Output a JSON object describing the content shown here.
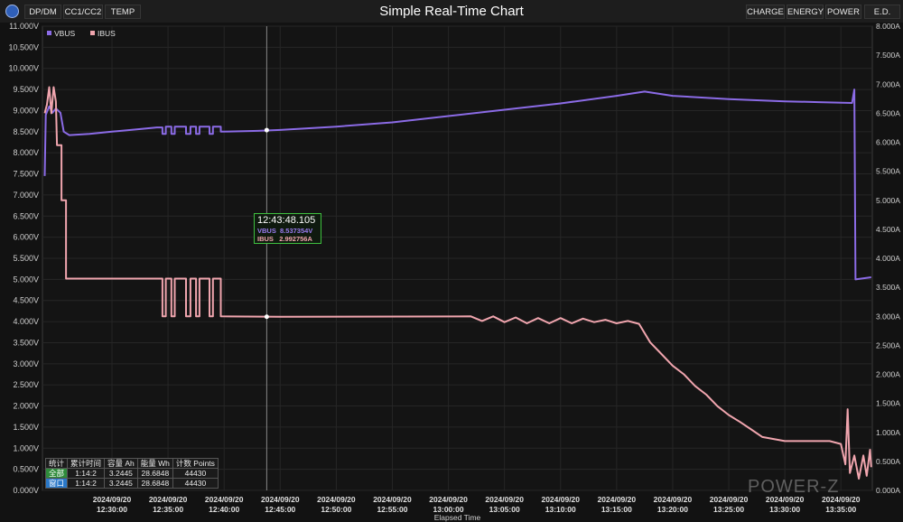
{
  "toolbar": {
    "tabs": [
      "DP/DM",
      "CC1/CC2",
      "TEMP"
    ],
    "title": "Simple Real-Time Chart",
    "right_buttons": [
      "CHARGE",
      "ENERGY",
      "POWER",
      "E.D."
    ]
  },
  "chart_data": {
    "type": "line",
    "title": "Simple Real-Time Chart",
    "xlabel": "Elapsed Time",
    "x_ticks": [
      [
        "2024/09/20",
        "12:30:00"
      ],
      [
        "2024/09/20",
        "12:35:00"
      ],
      [
        "2024/09/20",
        "12:40:00"
      ],
      [
        "2024/09/20",
        "12:45:00"
      ],
      [
        "2024/09/20",
        "12:50:00"
      ],
      [
        "2024/09/20",
        "12:55:00"
      ],
      [
        "2024/09/20",
        "13:00:00"
      ],
      [
        "2024/09/20",
        "13:05:00"
      ],
      [
        "2024/09/20",
        "13:10:00"
      ],
      [
        "2024/09/20",
        "13:15:00"
      ],
      [
        "2024/09/20",
        "13:20:00"
      ],
      [
        "2024/09/20",
        "13:25:00"
      ],
      [
        "2024/09/20",
        "13:30:00"
      ],
      [
        "2024/09/20",
        "13:35:00"
      ]
    ],
    "x_tick_minutes": [
      0,
      5,
      10,
      15,
      20,
      25,
      30,
      35,
      40,
      45,
      50,
      55,
      60,
      65
    ],
    "xlim_minutes": [
      -6.2,
      67.8
    ],
    "y_left": {
      "ticks": [
        "11.000V",
        "10.500V",
        "10.000V",
        "9.500V",
        "9.000V",
        "8.500V",
        "8.000V",
        "7.500V",
        "7.000V",
        "6.500V",
        "6.000V",
        "5.500V",
        "5.000V",
        "4.500V",
        "4.000V",
        "3.500V",
        "3.000V",
        "2.500V",
        "2.000V",
        "1.500V",
        "1.000V",
        "0.500V",
        "0.000V"
      ],
      "ylim": [
        0,
        11
      ]
    },
    "y_right": {
      "ticks": [
        "8.000A",
        "7.500A",
        "7.000A",
        "6.500A",
        "6.000A",
        "5.500A",
        "5.000A",
        "4.500A",
        "4.000A",
        "3.500A",
        "3.000A",
        "2.500A",
        "2.000A",
        "1.500A",
        "1.000A",
        "0.500A",
        "0.000A"
      ],
      "ylim": [
        0,
        8
      ]
    },
    "legend": [
      "VBUS",
      "IBUS"
    ],
    "colors": {
      "vbus": "#8b6be6",
      "ibus": "#f0a5ae",
      "cursor": "#888888"
    },
    "series": [
      {
        "name": "VBUS",
        "unit": "V",
        "points": [
          [
            -6.0,
            7.45
          ],
          [
            -5.9,
            8.9
          ],
          [
            -5.6,
            9.1
          ],
          [
            -5.3,
            8.95
          ],
          [
            -5.0,
            9.05
          ],
          [
            -4.6,
            8.95
          ],
          [
            -4.3,
            8.5
          ],
          [
            -3.8,
            8.42
          ],
          [
            -2,
            8.45
          ],
          [
            0,
            8.5
          ],
          [
            2,
            8.55
          ],
          [
            4,
            8.6
          ],
          [
            4.5,
            8.6
          ],
          [
            4.5,
            8.45
          ],
          [
            4.8,
            8.45
          ],
          [
            4.8,
            8.62
          ],
          [
            5.3,
            8.62
          ],
          [
            5.3,
            8.45
          ],
          [
            5.6,
            8.45
          ],
          [
            5.6,
            8.62
          ],
          [
            6.6,
            8.62
          ],
          [
            6.6,
            8.45
          ],
          [
            7,
            8.45
          ],
          [
            7,
            8.62
          ],
          [
            7.5,
            8.62
          ],
          [
            7.5,
            8.45
          ],
          [
            7.8,
            8.45
          ],
          [
            7.8,
            8.62
          ],
          [
            8.7,
            8.62
          ],
          [
            8.7,
            8.45
          ],
          [
            9,
            8.45
          ],
          [
            9,
            8.62
          ],
          [
            9.7,
            8.62
          ],
          [
            9.7,
            8.5
          ],
          [
            13,
            8.52
          ],
          [
            15,
            8.54
          ],
          [
            20,
            8.62
          ],
          [
            25,
            8.72
          ],
          [
            30,
            8.87
          ],
          [
            35,
            9.02
          ],
          [
            40,
            9.17
          ],
          [
            45,
            9.35
          ],
          [
            47.5,
            9.45
          ],
          [
            50,
            9.35
          ],
          [
            55,
            9.27
          ],
          [
            60,
            9.22
          ],
          [
            63,
            9.2
          ],
          [
            66,
            9.18
          ],
          [
            66.2,
            9.5
          ],
          [
            66.3,
            5.0
          ],
          [
            67.7,
            5.05
          ]
        ]
      },
      {
        "name": "IBUS",
        "unit": "A",
        "points": [
          [
            -6.0,
            6.5
          ],
          [
            -5.8,
            6.65
          ],
          [
            -5.6,
            6.95
          ],
          [
            -5.4,
            6.5
          ],
          [
            -5.2,
            6.95
          ],
          [
            -5.0,
            6.7
          ],
          [
            -4.9,
            5.95
          ],
          [
            -4.5,
            5.95
          ],
          [
            -4.5,
            5.0
          ],
          [
            -4.1,
            5.0
          ],
          [
            -4.1,
            3.65
          ],
          [
            4.5,
            3.65
          ],
          [
            4.5,
            3.0
          ],
          [
            4.8,
            3.0
          ],
          [
            4.8,
            3.65
          ],
          [
            5.3,
            3.65
          ],
          [
            5.3,
            3.0
          ],
          [
            5.6,
            3.0
          ],
          [
            5.6,
            3.65
          ],
          [
            6.6,
            3.65
          ],
          [
            6.6,
            3.0
          ],
          [
            7,
            3.0
          ],
          [
            7,
            3.65
          ],
          [
            7.5,
            3.65
          ],
          [
            7.5,
            3.0
          ],
          [
            7.8,
            3.0
          ],
          [
            7.8,
            3.65
          ],
          [
            8.7,
            3.65
          ],
          [
            8.7,
            3.0
          ],
          [
            9,
            3.0
          ],
          [
            9,
            3.65
          ],
          [
            9.7,
            3.65
          ],
          [
            9.7,
            3.0
          ],
          [
            15,
            2.993
          ],
          [
            32,
            3.0
          ],
          [
            33,
            2.92
          ],
          [
            34,
            3.0
          ],
          [
            35,
            2.9
          ],
          [
            36,
            2.98
          ],
          [
            37,
            2.88
          ],
          [
            38,
            2.97
          ],
          [
            39,
            2.88
          ],
          [
            40,
            2.97
          ],
          [
            41,
            2.88
          ],
          [
            42,
            2.96
          ],
          [
            43,
            2.9
          ],
          [
            44,
            2.94
          ],
          [
            45,
            2.88
          ],
          [
            46,
            2.92
          ],
          [
            47,
            2.87
          ],
          [
            48,
            2.55
          ],
          [
            49,
            2.35
          ],
          [
            50,
            2.15
          ],
          [
            51,
            2.0
          ],
          [
            52,
            1.8
          ],
          [
            53,
            1.65
          ],
          [
            54,
            1.45
          ],
          [
            55,
            1.3
          ],
          [
            56,
            1.18
          ],
          [
            57,
            1.05
          ],
          [
            58,
            0.92
          ],
          [
            60,
            0.85
          ],
          [
            62,
            0.85
          ],
          [
            64,
            0.85
          ],
          [
            65,
            0.8
          ],
          [
            65.4,
            0.45
          ],
          [
            65.6,
            1.4
          ],
          [
            65.8,
            0.3
          ],
          [
            66.2,
            0.6
          ],
          [
            66.6,
            0.2
          ],
          [
            67.0,
            0.6
          ],
          [
            67.3,
            0.25
          ],
          [
            67.6,
            0.7
          ],
          [
            67.7,
            0.4
          ]
        ]
      }
    ],
    "cursor": {
      "time": "12:43:48.105",
      "minute": 13.8,
      "vbus": "8.537354V",
      "ibus": "2.992756A",
      "vbus_value": 8.537354,
      "ibus_value": 2.992756
    }
  },
  "stats": {
    "headers": [
      "统计",
      "累计时间",
      "容量 Ah",
      "能量 Wh",
      "计数 Points"
    ],
    "rows": [
      [
        "全部",
        "1:14:2",
        "3.2445",
        "28.6848",
        "44430"
      ],
      [
        "窗口",
        "1:14:2",
        "3.2445",
        "28.6848",
        "44430"
      ]
    ]
  },
  "tooltip": {
    "time": "12:43:48.105",
    "vbus_label": "VBUS",
    "vbus_value": "8.537354V",
    "ibus_label": "IBUS",
    "ibus_value": "2.992756A"
  },
  "watermark": "POWER-Z"
}
